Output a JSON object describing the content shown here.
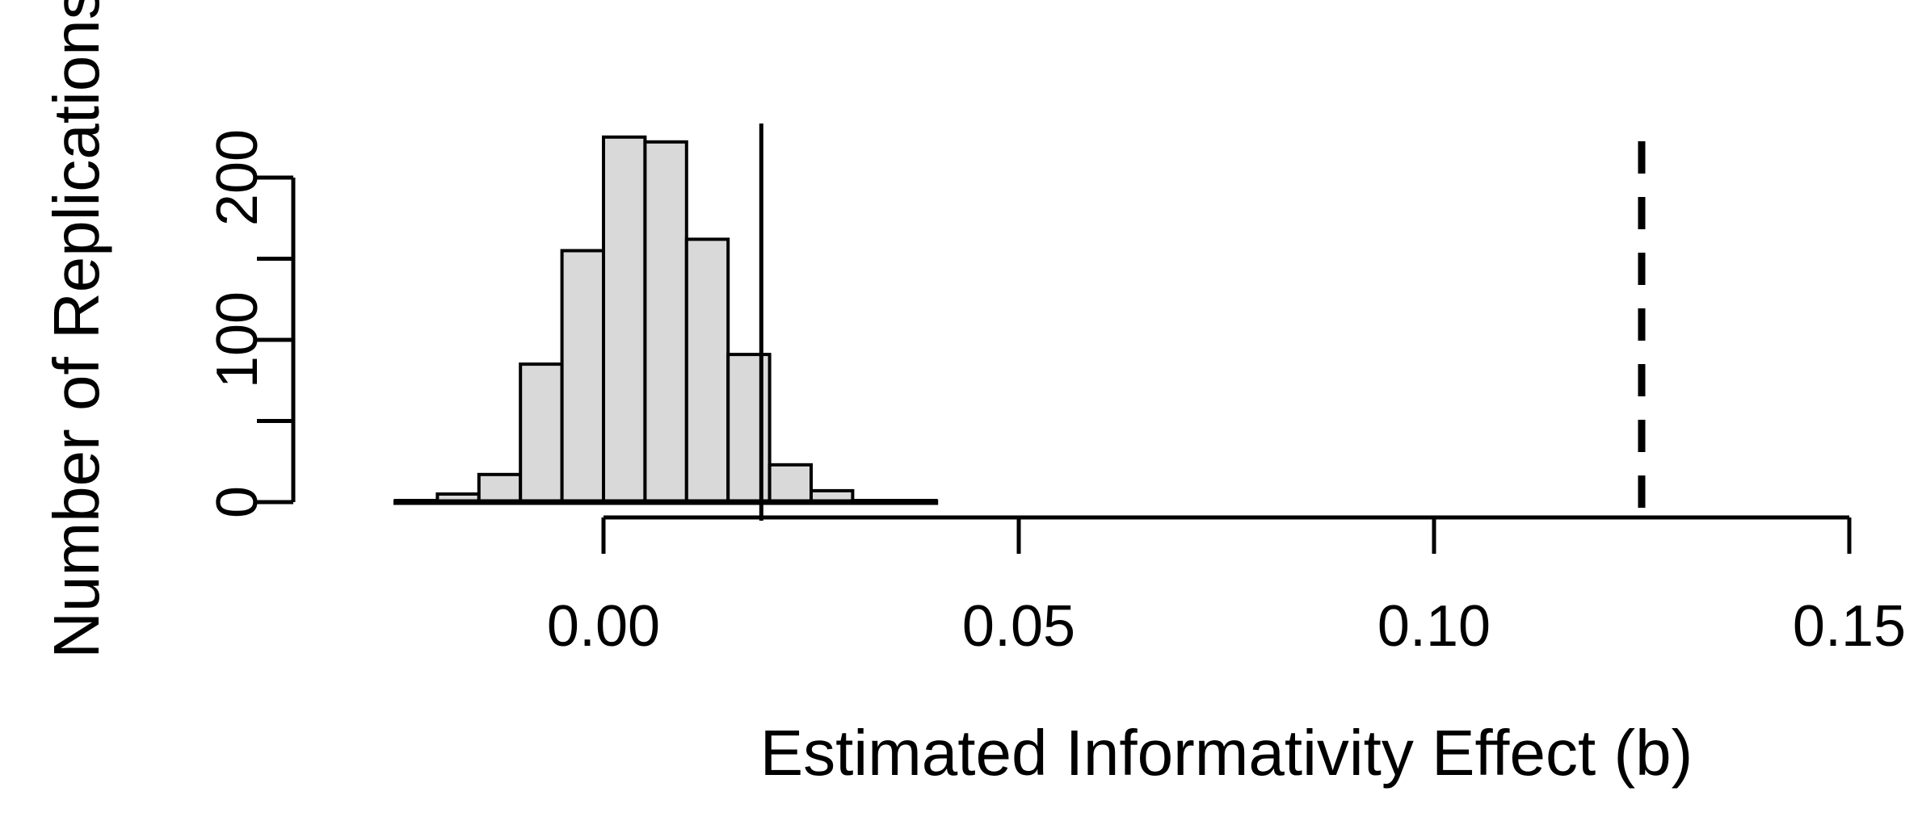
{
  "figure": {
    "background": "#ffffff",
    "ink_color": "#000000",
    "bar_fill": "#d9d9d9",
    "bar_stroke": "#000000"
  },
  "chart_data": {
    "type": "bar",
    "subtype": "histogram",
    "title": "",
    "xlabel": "Estimated Informativity Effect (b)",
    "ylabel": "Number of Replications",
    "bins": {
      "start": -0.025,
      "width": 0.005
    },
    "counts": [
      1,
      5,
      17,
      85,
      155,
      225,
      222,
      162,
      91,
      23,
      7,
      1,
      1
    ],
    "x_ticks": [
      {
        "value": 0.0,
        "label": "0.00"
      },
      {
        "value": 0.05,
        "label": "0.05"
      },
      {
        "value": 0.1,
        "label": "0.10"
      },
      {
        "value": 0.15,
        "label": "0.15"
      }
    ],
    "y_ticks": [
      {
        "value": 0,
        "label": "0"
      },
      {
        "value": 50,
        "label": ""
      },
      {
        "value": 100,
        "label": "100"
      },
      {
        "value": 150,
        "label": ""
      },
      {
        "value": 200,
        "label": "200"
      }
    ],
    "xlim": [
      -0.025,
      0.15
    ],
    "ylim": [
      0,
      200
    ],
    "grid": false,
    "legend": null,
    "annotations": {
      "solid_vline_x": 0.019,
      "dashed_vline_x": 0.125
    }
  }
}
